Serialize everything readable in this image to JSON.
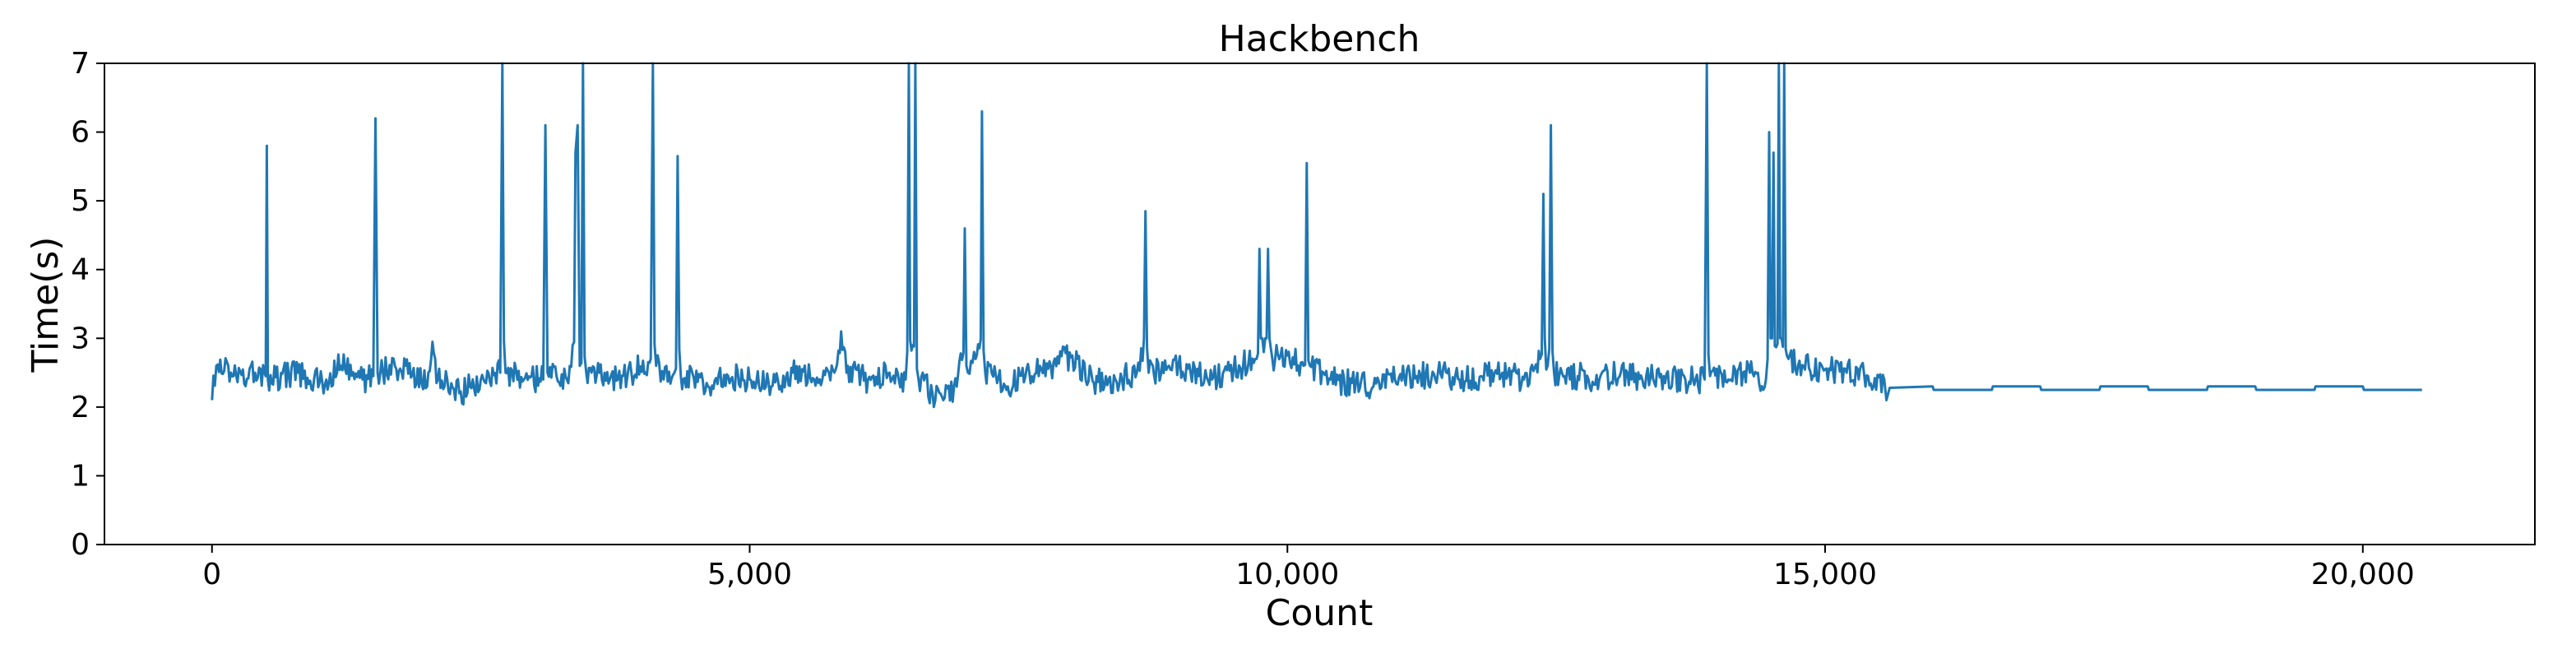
{
  "chart_data": {
    "type": "line",
    "title": "Hackbench",
    "xlabel": "Count",
    "ylabel": "Time(s)",
    "xlim": [
      -1000,
      21600
    ],
    "ylim": [
      0,
      7
    ],
    "xticks": [
      0,
      5000,
      10000,
      15000,
      20000
    ],
    "xtick_labels": [
      "0",
      "5,000",
      "10,000",
      "15,000",
      "20,000"
    ],
    "yticks": [
      0,
      1,
      2,
      3,
      4,
      5,
      6,
      7
    ],
    "ytick_labels": [
      "0",
      "1",
      "2",
      "3",
      "4",
      "5",
      "6",
      "7"
    ],
    "grid": false,
    "series": [
      {
        "color": "#1f77b4",
        "points": [
          [
            0,
            2.1
          ],
          [
            40,
            2.6
          ],
          [
            200,
            2.45
          ],
          [
            400,
            2.5
          ],
          [
            500,
            2.45
          ],
          [
            510,
            5.8
          ],
          [
            520,
            2.4
          ],
          [
            800,
            2.5
          ],
          [
            1000,
            2.35
          ],
          [
            1200,
            2.6
          ],
          [
            1400,
            2.4
          ],
          [
            1500,
            2.45
          ],
          [
            1520,
            6.2
          ],
          [
            1540,
            2.5
          ],
          [
            1800,
            2.6
          ],
          [
            2000,
            2.3
          ],
          [
            2050,
            2.95
          ],
          [
            2100,
            2.4
          ],
          [
            2300,
            2.2
          ],
          [
            2500,
            2.4
          ],
          [
            2680,
            2.5
          ],
          [
            2700,
            7.0
          ],
          [
            2730,
            2.5
          ],
          [
            2900,
            2.4
          ],
          [
            3080,
            2.4
          ],
          [
            3100,
            6.1
          ],
          [
            3120,
            2.5
          ],
          [
            3300,
            2.4
          ],
          [
            3380,
            5.7
          ],
          [
            3400,
            6.1
          ],
          [
            3420,
            2.6
          ],
          [
            3450,
            7.0
          ],
          [
            3480,
            2.5
          ],
          [
            3700,
            2.4
          ],
          [
            3900,
            2.5
          ],
          [
            4080,
            2.7
          ],
          [
            4100,
            7.0
          ],
          [
            4130,
            2.6
          ],
          [
            4200,
            2.4
          ],
          [
            4300,
            2.5
          ],
          [
            4330,
            5.65
          ],
          [
            4360,
            2.45
          ],
          [
            4600,
            2.35
          ],
          [
            4800,
            2.45
          ],
          [
            5000,
            2.4
          ],
          [
            5200,
            2.3
          ],
          [
            5400,
            2.5
          ],
          [
            5600,
            2.4
          ],
          [
            5800,
            2.55
          ],
          [
            5850,
            3.1
          ],
          [
            5900,
            2.5
          ],
          [
            6100,
            2.4
          ],
          [
            6300,
            2.5
          ],
          [
            6450,
            2.4
          ],
          [
            6480,
            7.0
          ],
          [
            6540,
            7.0
          ],
          [
            6570,
            2.4
          ],
          [
            6700,
            2.2
          ],
          [
            6800,
            2.1
          ],
          [
            6900,
            2.3
          ],
          [
            7000,
            4.6
          ],
          [
            7030,
            2.5
          ],
          [
            7100,
            2.7
          ],
          [
            7160,
            6.3
          ],
          [
            7190,
            2.5
          ],
          [
            7400,
            2.3
          ],
          [
            7600,
            2.5
          ],
          [
            7800,
            2.6
          ],
          [
            8000,
            2.75
          ],
          [
            8200,
            2.35
          ],
          [
            8400,
            2.4
          ],
          [
            8600,
            2.5
          ],
          [
            8680,
            4.85
          ],
          [
            8710,
            2.5
          ],
          [
            8900,
            2.6
          ],
          [
            9100,
            2.5
          ],
          [
            9300,
            2.4
          ],
          [
            9500,
            2.55
          ],
          [
            9700,
            2.7
          ],
          [
            9740,
            4.3
          ],
          [
            9780,
            2.8
          ],
          [
            9820,
            4.3
          ],
          [
            9860,
            2.7
          ],
          [
            10000,
            2.75
          ],
          [
            10150,
            2.6
          ],
          [
            10180,
            5.55
          ],
          [
            10210,
            2.6
          ],
          [
            10400,
            2.4
          ],
          [
            10600,
            2.35
          ],
          [
            10800,
            2.3
          ],
          [
            11000,
            2.4
          ],
          [
            11200,
            2.45
          ],
          [
            11400,
            2.5
          ],
          [
            11600,
            2.4
          ],
          [
            11800,
            2.45
          ],
          [
            12000,
            2.5
          ],
          [
            12200,
            2.4
          ],
          [
            12350,
            2.7
          ],
          [
            12380,
            5.1
          ],
          [
            12420,
            2.6
          ],
          [
            12450,
            6.1
          ],
          [
            12480,
            2.5
          ],
          [
            12700,
            2.45
          ],
          [
            12900,
            2.4
          ],
          [
            13100,
            2.5
          ],
          [
            13300,
            2.4
          ],
          [
            13500,
            2.45
          ],
          [
            13700,
            2.4
          ],
          [
            13880,
            2.4
          ],
          [
            13900,
            7.0
          ],
          [
            13930,
            2.45
          ],
          [
            14100,
            2.4
          ],
          [
            14300,
            2.5
          ],
          [
            14450,
            2.4
          ],
          [
            14480,
            6.0
          ],
          [
            14520,
            5.7
          ],
          [
            14570,
            7.0
          ],
          [
            14620,
            7.0
          ],
          [
            14660,
            2.7
          ],
          [
            14800,
            2.6
          ],
          [
            15000,
            2.55
          ],
          [
            15200,
            2.5
          ],
          [
            15400,
            2.45
          ],
          [
            15550,
            2.4
          ],
          [
            15570,
            2.1
          ],
          [
            15600,
            2.28
          ],
          [
            16000,
            2.3
          ],
          [
            16010,
            2.25
          ],
          [
            16550,
            2.25
          ],
          [
            16560,
            2.3
          ],
          [
            17000,
            2.3
          ],
          [
            17010,
            2.25
          ],
          [
            17550,
            2.25
          ],
          [
            17560,
            2.3
          ],
          [
            18000,
            2.3
          ],
          [
            18010,
            2.25
          ],
          [
            18550,
            2.25
          ],
          [
            18560,
            2.3
          ],
          [
            19000,
            2.3
          ],
          [
            19010,
            2.25
          ],
          [
            19550,
            2.25
          ],
          [
            19560,
            2.3
          ],
          [
            20000,
            2.3
          ],
          [
            20010,
            2.25
          ],
          [
            20550,
            2.25
          ]
        ]
      }
    ]
  }
}
